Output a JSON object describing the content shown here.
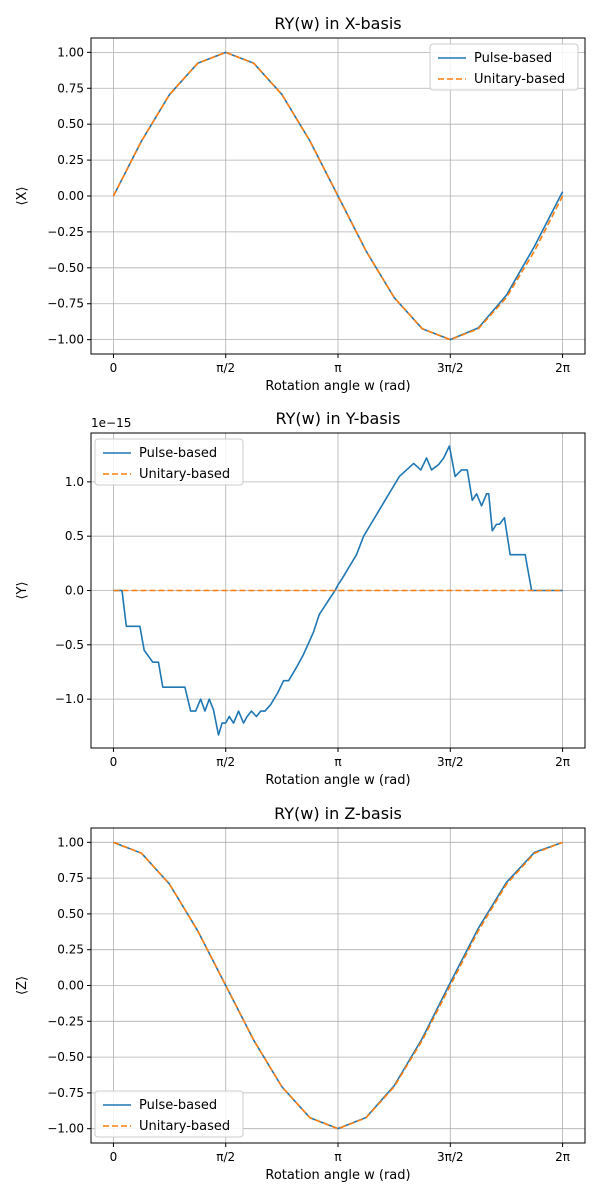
{
  "colors": {
    "pulse": "#1f77b4",
    "unitary": "#ff7f0e"
  },
  "chart_data": [
    {
      "type": "line",
      "title": "RY(w) in X-basis",
      "xlabel": "Rotation angle w (rad)",
      "ylabel": "⟨X⟩",
      "xlim": [
        -0.314,
        6.597
      ],
      "ylim": [
        -1.1,
        1.1
      ],
      "x_ticks": [
        {
          "value": 0,
          "label": "0"
        },
        {
          "value": 1.5708,
          "label": "π/2"
        },
        {
          "value": 3.1416,
          "label": "π"
        },
        {
          "value": 4.7124,
          "label": "3π/2"
        },
        {
          "value": 6.2832,
          "label": "2π"
        }
      ],
      "y_ticks": [
        {
          "value": 1.0,
          "label": "1.00"
        },
        {
          "value": 0.75,
          "label": "0.75"
        },
        {
          "value": 0.5,
          "label": "0.50"
        },
        {
          "value": 0.25,
          "label": "0.25"
        },
        {
          "value": 0.0,
          "label": "0.00"
        },
        {
          "value": -0.25,
          "label": "−0.25"
        },
        {
          "value": -0.5,
          "label": "−0.50"
        },
        {
          "value": -0.75,
          "label": "−0.75"
        },
        {
          "value": -1.0,
          "label": "−1.00"
        }
      ],
      "grid": true,
      "legend_position": "upper-right",
      "series": [
        {
          "name": "Pulse-based",
          "color": "#1f77b4",
          "dash": "solid",
          "x": [
            0,
            0.3927,
            0.7854,
            1.1781,
            1.5708,
            1.9635,
            2.3562,
            2.7489,
            3.1416,
            3.5343,
            3.927,
            4.3197,
            4.7124,
            5.1051,
            5.4978,
            5.8905,
            6.2832
          ],
          "y": [
            0.0,
            0.383,
            0.707,
            0.924,
            1.0,
            0.924,
            0.707,
            0.383,
            0.0,
            -0.383,
            -0.707,
            -0.924,
            -1.0,
            -0.918,
            -0.69,
            -0.35,
            0.03
          ]
        },
        {
          "name": "Unitary-based",
          "color": "#ff7f0e",
          "dash": "dashed",
          "x": [
            0,
            0.3927,
            0.7854,
            1.1781,
            1.5708,
            1.9635,
            2.3562,
            2.7489,
            3.1416,
            3.5343,
            3.927,
            4.3197,
            4.7124,
            5.1051,
            5.4978,
            5.8905,
            6.2832
          ],
          "y": [
            0.0,
            0.383,
            0.707,
            0.924,
            1.0,
            0.924,
            0.707,
            0.383,
            0.0,
            -0.383,
            -0.707,
            -0.924,
            -1.0,
            -0.924,
            -0.707,
            -0.383,
            0.0
          ]
        }
      ]
    },
    {
      "type": "line",
      "title": "RY(w) in Y-basis",
      "xlabel": "Rotation angle w (rad)",
      "ylabel": "⟨Y⟩",
      "offset_text": "1e−15",
      "xlim": [
        -0.314,
        6.597
      ],
      "ylim": [
        -1.45,
        1.45
      ],
      "x_ticks": [
        {
          "value": 0,
          "label": "0"
        },
        {
          "value": 1.5708,
          "label": "π/2"
        },
        {
          "value": 3.1416,
          "label": "π"
        },
        {
          "value": 4.7124,
          "label": "3π/2"
        },
        {
          "value": 6.2832,
          "label": "2π"
        }
      ],
      "y_ticks": [
        {
          "value": 1.0,
          "label": "1.0"
        },
        {
          "value": 0.5,
          "label": "0.5"
        },
        {
          "value": 0.0,
          "label": "0.0"
        },
        {
          "value": -0.5,
          "label": "−0.5"
        },
        {
          "value": -1.0,
          "label": "−1.0"
        }
      ],
      "grid": true,
      "legend_position": "upper-left",
      "series": [
        {
          "name": "Pulse-based",
          "color": "#1f77b4",
          "dash": "solid",
          "x": [
            0,
            0.12,
            0.18,
            0.37,
            0.43,
            0.55,
            0.63,
            0.69,
            1.0,
            1.08,
            1.15,
            1.22,
            1.28,
            1.34,
            1.4,
            1.47,
            1.52,
            1.57,
            1.62,
            1.68,
            1.75,
            1.82,
            1.87,
            1.93,
            2.0,
            2.06,
            2.12,
            2.2,
            2.3,
            2.38,
            2.45,
            2.55,
            2.65,
            2.72,
            2.8,
            2.88,
            3.0,
            3.1,
            3.14,
            3.2,
            3.3,
            3.4,
            3.5,
            3.6,
            3.7,
            3.8,
            3.9,
            4.0,
            4.1,
            4.2,
            4.3,
            4.38,
            4.45,
            4.55,
            4.62,
            4.7,
            4.78,
            4.87,
            4.95,
            5.02,
            5.08,
            5.15,
            5.22,
            5.25,
            5.3,
            5.36,
            5.4,
            5.47,
            5.55,
            5.6,
            5.65,
            5.72,
            5.76,
            5.85,
            6.0,
            6.08,
            6.15,
            6.2832
          ],
          "y": [
            0.0,
            0.0,
            -0.33,
            -0.33,
            -0.55,
            -0.66,
            -0.66,
            -0.89,
            -0.89,
            -1.11,
            -1.11,
            -1.0,
            -1.11,
            -1.0,
            -1.1,
            -1.33,
            -1.22,
            -1.22,
            -1.16,
            -1.22,
            -1.11,
            -1.22,
            -1.16,
            -1.11,
            -1.16,
            -1.11,
            -1.11,
            -1.05,
            -0.94,
            -0.83,
            -0.83,
            -0.72,
            -0.6,
            -0.5,
            -0.38,
            -0.22,
            -0.1,
            0.0,
            0.05,
            0.11,
            0.22,
            0.33,
            0.5,
            0.61,
            0.72,
            0.83,
            0.94,
            1.05,
            1.11,
            1.17,
            1.11,
            1.22,
            1.11,
            1.16,
            1.22,
            1.33,
            1.05,
            1.11,
            1.11,
            0.83,
            0.89,
            0.78,
            0.89,
            0.89,
            0.55,
            0.61,
            0.61,
            0.67,
            0.33,
            0.33,
            0.33,
            0.33,
            0.33,
            0.0,
            0.0,
            0.0,
            0.0,
            0.0
          ]
        },
        {
          "name": "Unitary-based",
          "color": "#ff7f0e",
          "dash": "dashed",
          "x": [
            0,
            6.2832
          ],
          "y": [
            0.0,
            0.0
          ]
        }
      ]
    },
    {
      "type": "line",
      "title": "RY(w) in Z-basis",
      "xlabel": "Rotation angle w (rad)",
      "ylabel": "⟨Z⟩",
      "xlim": [
        -0.314,
        6.597
      ],
      "ylim": [
        -1.1,
        1.1
      ],
      "x_ticks": [
        {
          "value": 0,
          "label": "0"
        },
        {
          "value": 1.5708,
          "label": "π/2"
        },
        {
          "value": 3.1416,
          "label": "π"
        },
        {
          "value": 4.7124,
          "label": "3π/2"
        },
        {
          "value": 6.2832,
          "label": "2π"
        }
      ],
      "y_ticks": [
        {
          "value": 1.0,
          "label": "1.00"
        },
        {
          "value": 0.75,
          "label": "0.75"
        },
        {
          "value": 0.5,
          "label": "0.50"
        },
        {
          "value": 0.25,
          "label": "0.25"
        },
        {
          "value": 0.0,
          "label": "0.00"
        },
        {
          "value": -0.25,
          "label": "−0.25"
        },
        {
          "value": -0.5,
          "label": "−0.50"
        },
        {
          "value": -0.75,
          "label": "−0.75"
        },
        {
          "value": -1.0,
          "label": "−1.00"
        }
      ],
      "grid": true,
      "legend_position": "lower-left",
      "series": [
        {
          "name": "Pulse-based",
          "color": "#1f77b4",
          "dash": "solid",
          "x": [
            0,
            0.3927,
            0.7854,
            1.1781,
            1.5708,
            1.9635,
            2.3562,
            2.7489,
            3.1416,
            3.5343,
            3.927,
            4.3197,
            4.7124,
            5.1051,
            5.4978,
            5.8905,
            6.2832
          ],
          "y": [
            1.0,
            0.924,
            0.707,
            0.383,
            0.0,
            -0.383,
            -0.707,
            -0.924,
            -1.0,
            -0.922,
            -0.7,
            -0.37,
            0.02,
            0.4,
            0.72,
            0.93,
            1.0
          ]
        },
        {
          "name": "Unitary-based",
          "color": "#ff7f0e",
          "dash": "dashed",
          "x": [
            0,
            0.3927,
            0.7854,
            1.1781,
            1.5708,
            1.9635,
            2.3562,
            2.7489,
            3.1416,
            3.5343,
            3.927,
            4.3197,
            4.7124,
            5.1051,
            5.4978,
            5.8905,
            6.2832
          ],
          "y": [
            1.0,
            0.924,
            0.707,
            0.383,
            0.0,
            -0.383,
            -0.707,
            -0.924,
            -1.0,
            -0.924,
            -0.707,
            -0.383,
            0.0,
            0.383,
            0.707,
            0.924,
            1.0
          ]
        }
      ]
    }
  ]
}
